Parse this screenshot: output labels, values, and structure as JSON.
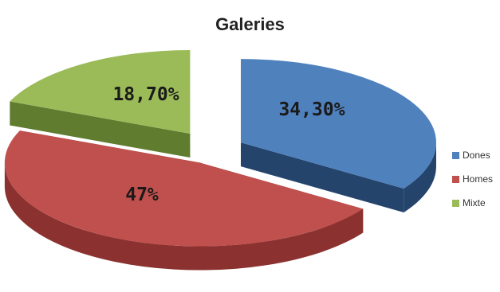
{
  "chart_data": {
    "type": "pie",
    "title": "Galeries",
    "categories": [
      "Dones",
      "Homes",
      "Mixte"
    ],
    "values": [
      34.3,
      47,
      18.7
    ],
    "value_labels": [
      "34,30%",
      "47%",
      "18,70%"
    ],
    "colors": [
      "#4f81bd",
      "#c0504d",
      "#9bbb59"
    ],
    "side_colors": [
      "#24446c",
      "#8b3230",
      "#5f7c2f"
    ],
    "style": "3d-exploded",
    "legend": "right"
  }
}
